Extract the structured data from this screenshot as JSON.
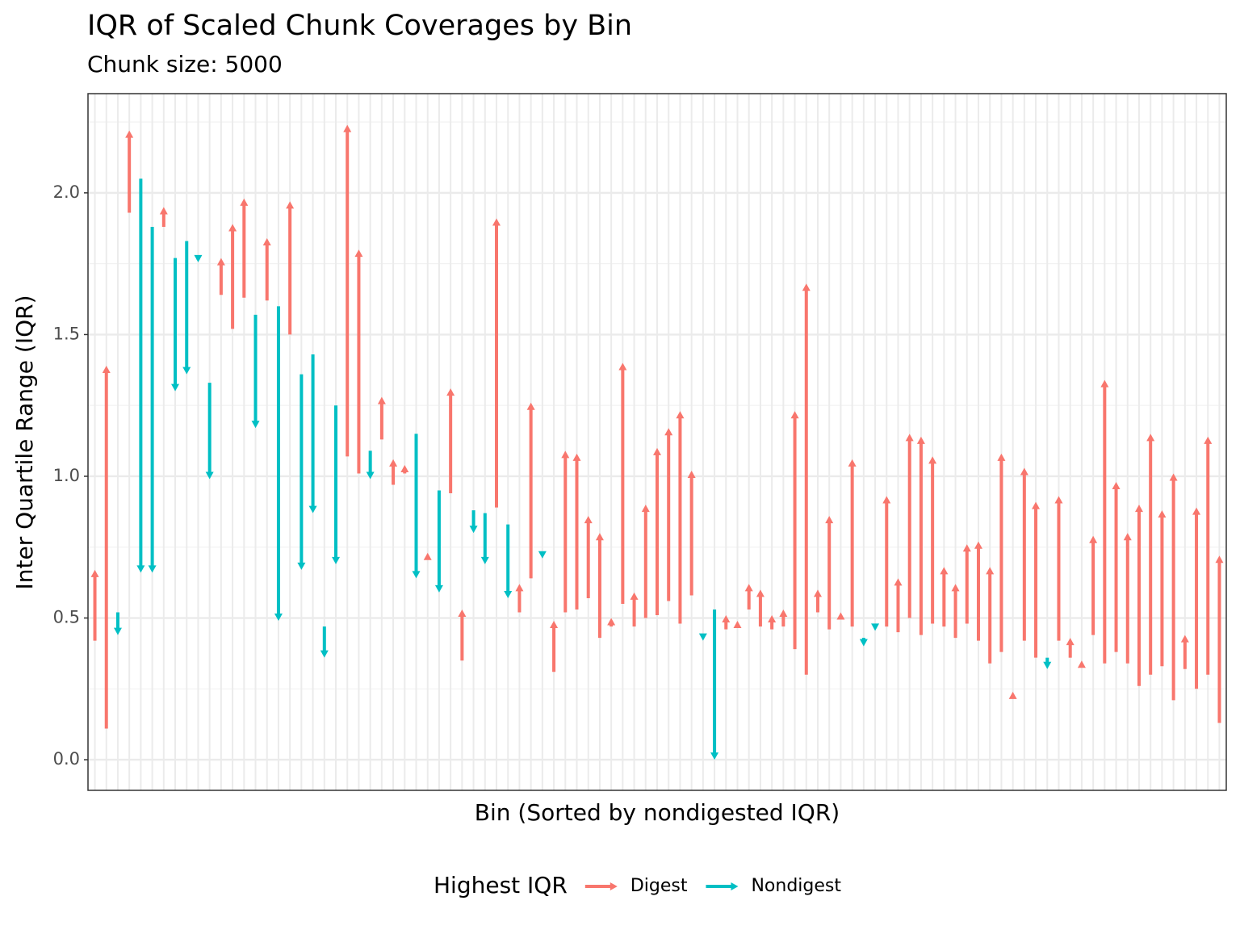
{
  "chart_data": {
    "type": "arrow",
    "title": "IQR of Scaled Chunk Coverages by Bin",
    "subtitle": "Chunk size: 5000",
    "x_label": "Bin (Sorted by nondigested IQR)",
    "y_label": "Inter Quartile Range (IQR)",
    "legend_title": "Highest IQR",
    "legend_position": "bottom",
    "grid": true,
    "ylim": [
      -0.108,
      2.35
    ],
    "yticks": [
      {
        "value": 0,
        "label": "0.0"
      },
      {
        "value": 0.5,
        "label": "0.5"
      },
      {
        "value": 1,
        "label": "1.0"
      },
      {
        "value": 1.5,
        "label": "1.5"
      },
      {
        "value": 2,
        "label": "2.0"
      }
    ],
    "y_minor_ticks": [
      0.25,
      0.75,
      1.25,
      1.75,
      2.25
    ],
    "series": [
      {
        "name": "Digest",
        "color": "#f8766d",
        "values": [
          0.67,
          1.39,
          0.44,
          2.22,
          0.66,
          0.66,
          1.95,
          1.3,
          1.36,
          1.755,
          0.99,
          1.77,
          1.89,
          1.98,
          1.17,
          1.84,
          0.49,
          1.97,
          0.67,
          0.87,
          0.36,
          0.69,
          2.24,
          1.8,
          0.99,
          1.28,
          1.06,
          1.04,
          0.64,
          0.73,
          0.59,
          1.31,
          0.53,
          0.8,
          0.69,
          1.91,
          0.57,
          0.62,
          1.26,
          0.71,
          0.49,
          1.09,
          1.08,
          0.86,
          0.8,
          0.5,
          1.4,
          0.59,
          0.9,
          1.1,
          1.17,
          1.23,
          1.02,
          0.42,
          0.0,
          0.51,
          0.49,
          0.62,
          0.6,
          0.51,
          0.53,
          1.23,
          1.68,
          0.6,
          0.86,
          0.52,
          1.06,
          0.4,
          0.455,
          0.93,
          0.64,
          1.15,
          1.14,
          1.07,
          0.68,
          0.62,
          0.76,
          0.77,
          0.68,
          1.08,
          0.24,
          1.03,
          0.91,
          0.32,
          0.93,
          0.43,
          0.35,
          0.79,
          1.34,
          0.98,
          0.8,
          0.9,
          1.15,
          0.88,
          1.01,
          0.44,
          0.89,
          1.14,
          0.72
        ]
      },
      {
        "name": "Nondigest",
        "color": "#00bfc4",
        "values": [
          0.42,
          0.11,
          0.52,
          1.93,
          2.05,
          1.88,
          1.88,
          1.77,
          1.83,
          1.77,
          1.33,
          1.64,
          1.52,
          1.63,
          1.57,
          1.62,
          1.6,
          1.5,
          1.36,
          1.43,
          0.47,
          1.25,
          1.07,
          1.01,
          1.09,
          1.13,
          0.97,
          1.01,
          1.15,
          0.71,
          0.95,
          0.94,
          0.35,
          0.88,
          0.87,
          0.89,
          0.83,
          0.52,
          0.64,
          0.73,
          0.31,
          0.52,
          0.53,
          0.57,
          0.43,
          0.47,
          0.55,
          0.47,
          0.5,
          0.51,
          0.56,
          0.48,
          0.58,
          0.44,
          0.53,
          0.46,
          0.47,
          0.53,
          0.47,
          0.46,
          0.47,
          0.39,
          0.3,
          0.52,
          0.46,
          0.5,
          0.47,
          0.43,
          0.47,
          0.47,
          0.45,
          0.5,
          0.44,
          0.48,
          0.47,
          0.43,
          0.48,
          0.42,
          0.34,
          0.38,
          0.22,
          0.42,
          0.36,
          0.36,
          0.42,
          0.36,
          0.33,
          0.44,
          0.34,
          0.38,
          0.34,
          0.26,
          0.3,
          0.33,
          0.21,
          0.32,
          0.25,
          0.3,
          0.13
        ]
      }
    ]
  }
}
